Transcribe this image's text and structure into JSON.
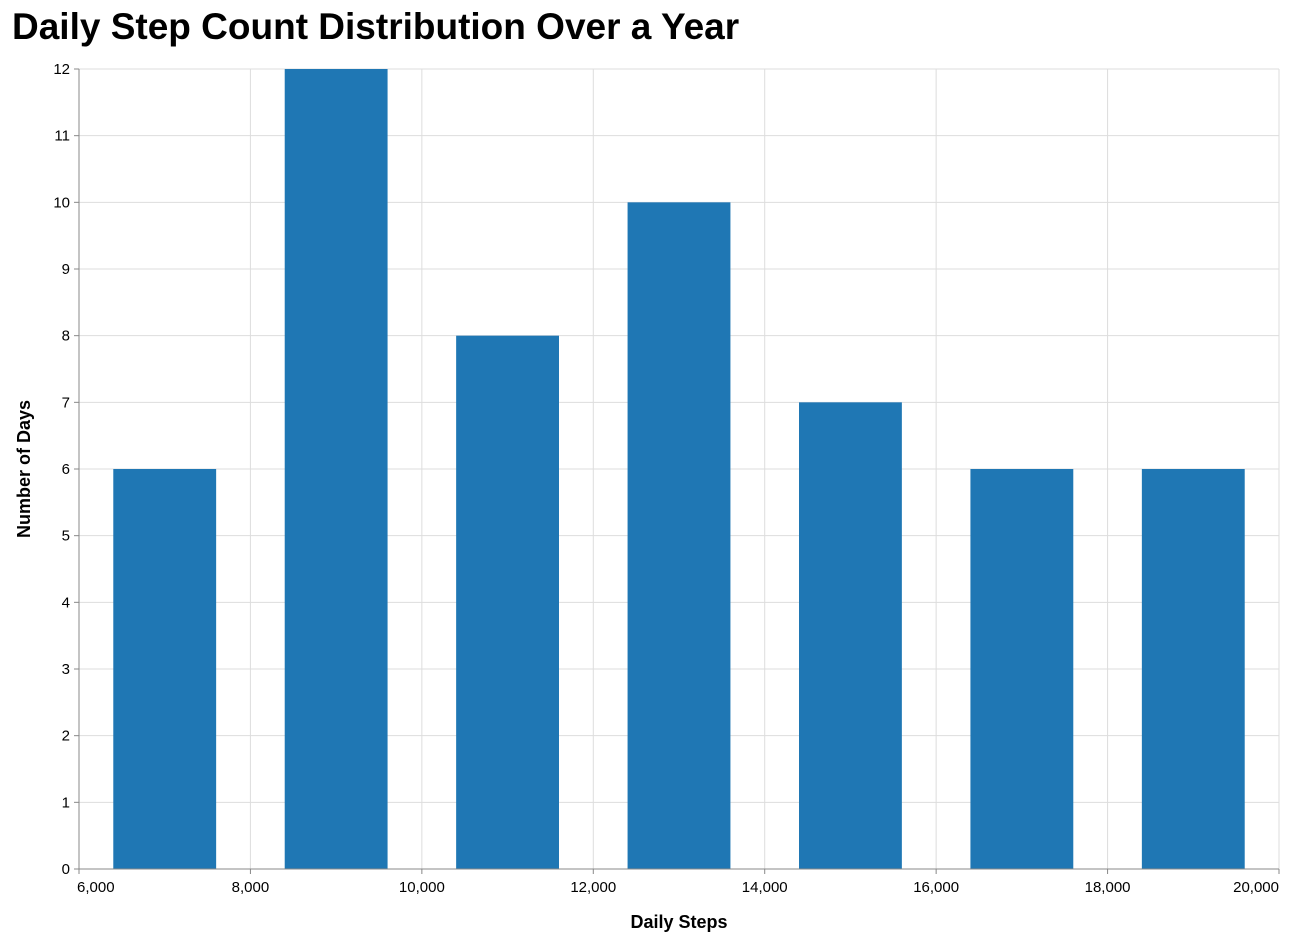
{
  "chart_data": {
    "type": "bar",
    "title": "Daily Step Count Distribution Over a Year",
    "xlabel": "Daily Steps",
    "ylabel": "Number of Days",
    "xlim": [
      6000,
      20000
    ],
    "ylim": [
      0,
      12
    ],
    "x_ticks": [
      6000,
      8000,
      10000,
      12000,
      14000,
      16000,
      18000,
      20000
    ],
    "y_ticks": [
      0,
      1,
      2,
      3,
      4,
      5,
      6,
      7,
      8,
      9,
      10,
      11,
      12
    ],
    "bar_color": "#1f77b4",
    "grid": true,
    "bins": [
      {
        "x0": 6400,
        "x1": 7600,
        "value": 6
      },
      {
        "x0": 8400,
        "x1": 9600,
        "value": 12
      },
      {
        "x0": 10400,
        "x1": 11600,
        "value": 8
      },
      {
        "x0": 12400,
        "x1": 13600,
        "value": 10
      },
      {
        "x0": 14400,
        "x1": 15600,
        "value": 7
      },
      {
        "x0": 16400,
        "x1": 17600,
        "value": 6
      },
      {
        "x0": 18400,
        "x1": 19600,
        "value": 6
      }
    ]
  }
}
